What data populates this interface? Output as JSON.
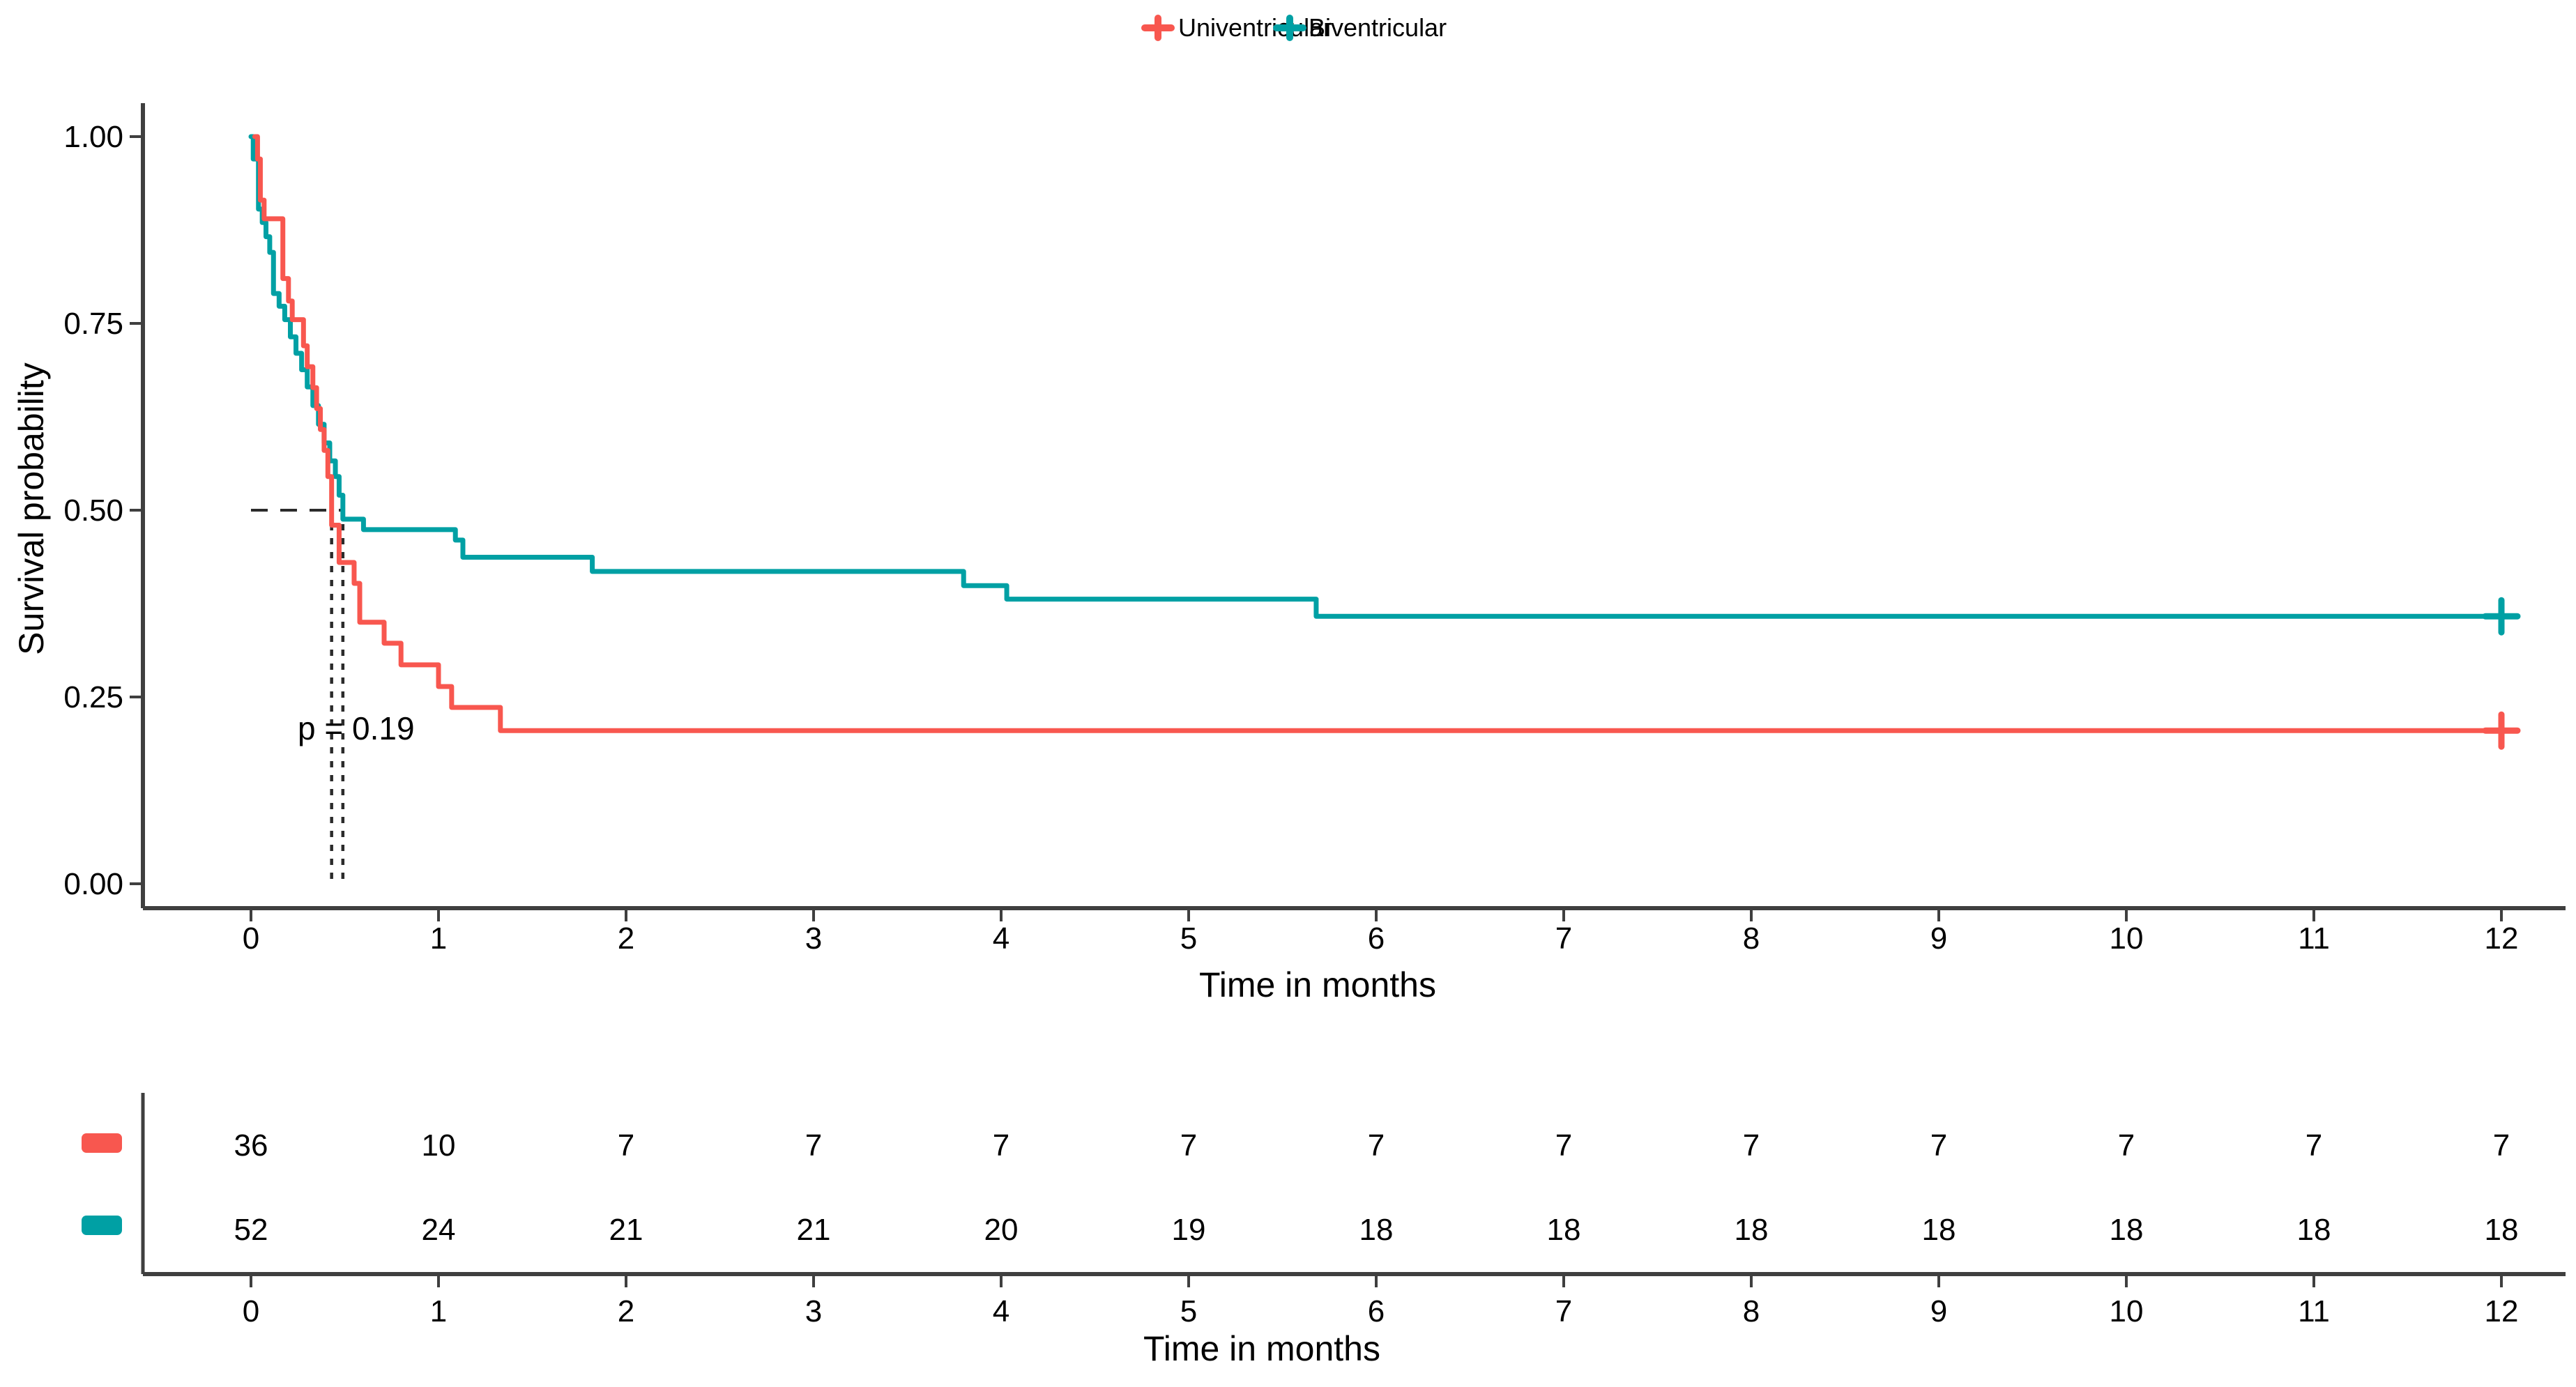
{
  "chart_data": {
    "type": "line",
    "subtype": "kaplan-meier-step",
    "title": "",
    "xlabel": "Time in months",
    "ylabel": "Survival probability",
    "xlim": [
      0,
      12
    ],
    "ylim": [
      0,
      1
    ],
    "grid": false,
    "legend_position": "top",
    "x_ticks": {
      "values": [
        0,
        1,
        2,
        3,
        4,
        5,
        6,
        7,
        8,
        9,
        10,
        11,
        12
      ],
      "labels": [
        "0",
        "1",
        "2",
        "3",
        "4",
        "5",
        "6",
        "7",
        "8",
        "9",
        "10",
        "11",
        "12"
      ]
    },
    "y_ticks": {
      "values": [
        0,
        0.25,
        0.5,
        0.75,
        1.0
      ],
      "labels": [
        "0.00",
        "0.25",
        "0.50",
        "0.75",
        "1.00"
      ]
    },
    "annotation": {
      "text": "p = 0.19",
      "x_months": 0.25,
      "y_survival": 0.2
    },
    "median_guides": {
      "y": 0.5,
      "x_values": [
        0.43,
        0.49
      ],
      "style": "dashed"
    },
    "axis_color": "#3f3f3f",
    "series": [
      {
        "name": "Univentricular",
        "color": "#F8574F",
        "n_start": 36,
        "median_months": 0.43,
        "censor_marks": [
          [
            12,
            0.205
          ]
        ],
        "steps": [
          [
            0.02,
            1.0
          ],
          [
            0.035,
            0.97
          ],
          [
            0.05,
            0.915
          ],
          [
            0.07,
            0.89
          ],
          [
            0.17,
            0.81
          ],
          [
            0.2,
            0.78
          ],
          [
            0.22,
            0.755
          ],
          [
            0.28,
            0.72
          ],
          [
            0.3,
            0.692
          ],
          [
            0.33,
            0.664
          ],
          [
            0.35,
            0.636
          ],
          [
            0.37,
            0.608
          ],
          [
            0.39,
            0.58
          ],
          [
            0.41,
            0.545
          ],
          [
            0.43,
            0.48
          ],
          [
            0.47,
            0.43
          ],
          [
            0.55,
            0.402
          ],
          [
            0.58,
            0.35
          ],
          [
            0.71,
            0.322
          ],
          [
            0.8,
            0.293
          ],
          [
            1.0,
            0.264
          ],
          [
            1.07,
            0.236
          ],
          [
            1.33,
            0.205
          ],
          [
            12,
            0.205
          ]
        ]
      },
      {
        "name": "Biventricular",
        "color": "#00A0A4",
        "n_start": 52,
        "median_months": 0.49,
        "censor_marks": [
          [
            12,
            0.358
          ]
        ],
        "steps": [
          [
            0,
            1.0
          ],
          [
            0.012,
            0.97
          ],
          [
            0.04,
            0.903
          ],
          [
            0.06,
            0.885
          ],
          [
            0.08,
            0.866
          ],
          [
            0.1,
            0.845
          ],
          [
            0.12,
            0.79
          ],
          [
            0.15,
            0.773
          ],
          [
            0.18,
            0.755
          ],
          [
            0.21,
            0.732
          ],
          [
            0.24,
            0.71
          ],
          [
            0.27,
            0.688
          ],
          [
            0.3,
            0.665
          ],
          [
            0.33,
            0.64
          ],
          [
            0.36,
            0.615
          ],
          [
            0.39,
            0.59
          ],
          [
            0.42,
            0.566
          ],
          [
            0.45,
            0.545
          ],
          [
            0.47,
            0.52
          ],
          [
            0.49,
            0.488
          ],
          [
            0.6,
            0.474
          ],
          [
            1.09,
            0.46
          ],
          [
            1.13,
            0.437
          ],
          [
            1.82,
            0.418
          ],
          [
            3.8,
            0.399
          ],
          [
            4.03,
            0.381
          ],
          [
            5.68,
            0.358
          ],
          [
            12,
            0.358
          ]
        ]
      }
    ],
    "risk_table": {
      "xlabel": "Time in months",
      "x_ticks": {
        "values": [
          0,
          1,
          2,
          3,
          4,
          5,
          6,
          7,
          8,
          9,
          10,
          11,
          12
        ],
        "labels": [
          "0",
          "1",
          "2",
          "3",
          "4",
          "5",
          "6",
          "7",
          "8",
          "9",
          "10",
          "11",
          "12"
        ]
      },
      "rows": [
        {
          "series": "Univentricular",
          "color": "#F8574F",
          "counts": [
            36,
            10,
            7,
            7,
            7,
            7,
            7,
            7,
            7,
            7,
            7,
            7,
            7
          ]
        },
        {
          "series": "Biventricular",
          "color": "#00A0A4",
          "counts": [
            52,
            24,
            21,
            21,
            20,
            19,
            18,
            18,
            18,
            18,
            18,
            18,
            18
          ]
        }
      ]
    }
  }
}
